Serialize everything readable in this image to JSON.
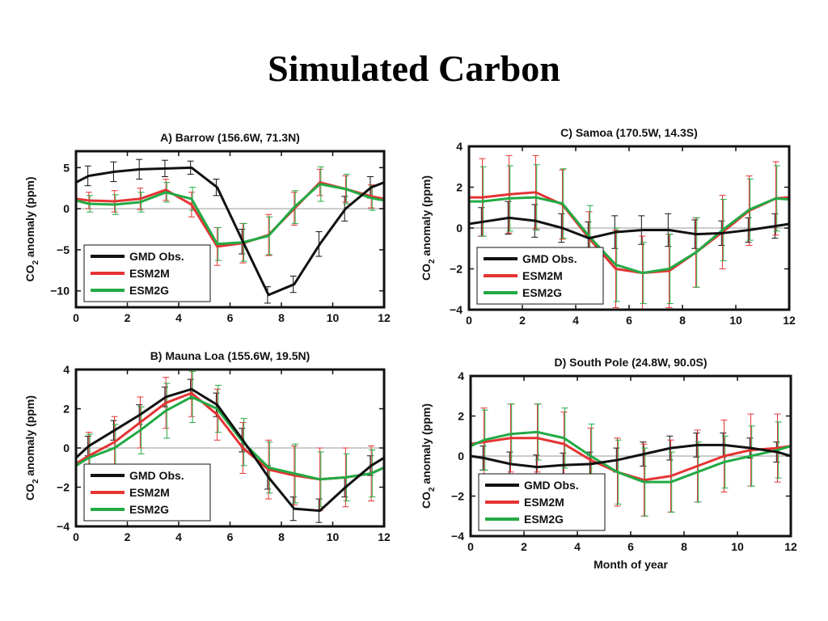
{
  "slide": {
    "title": "Simulated Carbon"
  },
  "colors": {
    "obs": "#111111",
    "esm2m": "#e53333",
    "esm2g": "#22aa44",
    "zero_line": "#999999"
  },
  "chart_data": [
    {
      "type": "line",
      "title": "A) Barrow (156.6W, 71.3N)",
      "ylabel_main": "CO",
      "ylabel_sub": "2",
      "ylabel_rest": " anomaly (ppm)",
      "xlabel": "",
      "xlim": [
        0,
        12
      ],
      "ylim": [
        -12,
        7
      ],
      "xticks": [
        "0",
        "2",
        "4",
        "6",
        "8",
        "10",
        "12"
      ],
      "yticks": [
        "5",
        "0",
        "−5",
        "−10"
      ],
      "ytick_values": [
        5,
        0,
        -5,
        -10
      ],
      "legend": {
        "placement": "bottom-left",
        "entries": [
          "GMD Obs.",
          "ESM2M",
          "ESM2G"
        ]
      },
      "x": [
        0,
        0.5,
        1.5,
        2.5,
        3.5,
        4.5,
        5.5,
        6.5,
        7.5,
        8.5,
        9.5,
        10.5,
        11.5,
        12
      ],
      "series": [
        {
          "name": "GMD Obs.",
          "values": [
            3.2,
            4.0,
            4.5,
            4.8,
            4.9,
            5.0,
            2.6,
            -4.0,
            -10.5,
            -9.2,
            -4.3,
            0.0,
            2.6,
            3.2
          ],
          "err": [
            0,
            1.2,
            1.2,
            1.2,
            1.0,
            0.8,
            1.0,
            1.5,
            1.0,
            1.0,
            1.5,
            1.5,
            1.3,
            0
          ]
        },
        {
          "name": "ESM2M",
          "values": [
            1.2,
            1.0,
            0.9,
            1.2,
            2.3,
            0.5,
            -4.6,
            -4.2,
            -3.2,
            0.0,
            3.2,
            2.4,
            1.5,
            1.2
          ],
          "err": [
            0,
            1.0,
            1.3,
            1.3,
            1.3,
            1.5,
            2.3,
            2.4,
            2.5,
            2.0,
            1.6,
            1.6,
            1.4,
            0
          ]
        },
        {
          "name": "ESM2G",
          "values": [
            1.0,
            0.6,
            0.5,
            0.8,
            2.0,
            1.2,
            -4.3,
            -4.1,
            -3.3,
            0.2,
            3.0,
            2.4,
            1.3,
            1.0
          ],
          "err": [
            0,
            1.0,
            1.2,
            1.2,
            1.2,
            1.4,
            2.0,
            2.3,
            2.3,
            2.0,
            2.1,
            1.8,
            1.5,
            0
          ]
        }
      ]
    },
    {
      "type": "line",
      "title": "B) Mauna Loa (155.6W, 19.5N)",
      "ylabel_main": "CO",
      "ylabel_sub": "2",
      "ylabel_rest": " anomaly (ppm)",
      "xlabel": "",
      "xlim": [
        0,
        12
      ],
      "ylim": [
        -4,
        4
      ],
      "xticks": [
        "0",
        "2",
        "4",
        "6",
        "8",
        "10",
        "12"
      ],
      "yticks": [
        "4",
        "2",
        "0",
        "−2",
        "−4"
      ],
      "ytick_values": [
        4,
        2,
        0,
        -2,
        -4
      ],
      "legend": {
        "placement": "bottom-left",
        "entries": [
          "GMD Obs.",
          "ESM2M",
          "ESM2G"
        ]
      },
      "x": [
        0,
        0.5,
        1.5,
        2.5,
        3.5,
        4.5,
        5.5,
        6.5,
        7.5,
        8.5,
        9.5,
        10.5,
        11.5,
        12
      ],
      "series": [
        {
          "name": "GMD Obs.",
          "values": [
            -0.5,
            0.1,
            0.9,
            1.7,
            2.6,
            3.0,
            2.2,
            0.4,
            -1.5,
            -3.1,
            -3.2,
            -2.0,
            -0.9,
            -0.5
          ],
          "err": [
            0,
            0.5,
            0.5,
            0.5,
            0.5,
            0.5,
            0.6,
            0.6,
            0.6,
            0.6,
            0.6,
            0.5,
            0.5,
            0
          ]
        },
        {
          "name": "ESM2M",
          "values": [
            -0.8,
            -0.4,
            0.3,
            1.3,
            2.3,
            2.8,
            1.7,
            0.0,
            -1.1,
            -1.4,
            -1.6,
            -1.5,
            -1.3,
            -1.0
          ],
          "err": [
            0,
            1.2,
            1.3,
            1.3,
            1.3,
            1.2,
            1.3,
            1.3,
            1.5,
            1.5,
            1.6,
            1.5,
            1.4,
            0
          ]
        },
        {
          "name": "ESM2G",
          "values": [
            -0.9,
            -0.5,
            0.0,
            0.9,
            1.9,
            2.6,
            2.0,
            0.3,
            -1.0,
            -1.3,
            -1.6,
            -1.5,
            -1.3,
            -1.0
          ],
          "err": [
            0,
            1.2,
            1.2,
            1.2,
            1.4,
            1.3,
            1.2,
            1.2,
            1.3,
            1.5,
            1.4,
            1.2,
            1.2,
            0
          ]
        }
      ]
    },
    {
      "type": "line",
      "title": "C) Samoa (170.5W, 14.3S)",
      "ylabel_main": "CO",
      "ylabel_sub": "2",
      "ylabel_rest": " anomaly (ppm)",
      "xlabel": "",
      "xlim": [
        0,
        12
      ],
      "ylim": [
        -4,
        4
      ],
      "xticks": [
        "0",
        "2",
        "4",
        "6",
        "8",
        "10",
        "12"
      ],
      "yticks": [
        "4",
        "2",
        "0",
        "−2",
        "−4"
      ],
      "ytick_values": [
        4,
        2,
        0,
        -2,
        -4
      ],
      "legend": {
        "placement": "bottom-left",
        "entries": [
          "GMD Obs.",
          "ESM2M",
          "ESM2G"
        ]
      },
      "x": [
        0,
        0.5,
        1.5,
        2.5,
        3.5,
        4.5,
        5.5,
        6.5,
        7.5,
        8.5,
        9.5,
        10.5,
        11.5,
        12
      ],
      "series": [
        {
          "name": "GMD Obs.",
          "values": [
            0.2,
            0.3,
            0.5,
            0.35,
            0.0,
            -0.5,
            -0.2,
            -0.1,
            -0.1,
            -0.3,
            -0.25,
            -0.1,
            0.1,
            0.2
          ],
          "err": [
            0,
            0.7,
            0.8,
            0.8,
            0.7,
            0.8,
            0.8,
            0.7,
            0.8,
            0.7,
            0.6,
            0.6,
            0.6,
            0
          ]
        },
        {
          "name": "ESM2M",
          "values": [
            1.5,
            1.5,
            1.65,
            1.75,
            1.15,
            -0.5,
            -2.0,
            -2.2,
            -2.1,
            -1.2,
            -0.2,
            0.85,
            1.45,
            1.5
          ],
          "err": [
            0,
            1.9,
            1.9,
            1.8,
            1.7,
            1.3,
            1.9,
            1.8,
            1.8,
            1.7,
            1.8,
            1.7,
            1.8,
            0
          ]
        },
        {
          "name": "ESM2G",
          "values": [
            1.3,
            1.3,
            1.45,
            1.5,
            1.2,
            -0.4,
            -1.8,
            -2.2,
            -2.0,
            -1.2,
            -0.1,
            0.9,
            1.45,
            1.4
          ],
          "err": [
            0,
            1.7,
            1.6,
            1.6,
            1.7,
            1.5,
            1.8,
            1.5,
            1.7,
            1.7,
            1.5,
            1.5,
            1.6,
            0
          ]
        }
      ]
    },
    {
      "type": "line",
      "title": "D) South Pole (24.8W, 90.0S)",
      "ylabel_main": "CO",
      "ylabel_sub": "2",
      "ylabel_rest": " anomaly (ppm)",
      "xlabel": "Month of year",
      "xlim": [
        0,
        12
      ],
      "ylim": [
        -4,
        4
      ],
      "xticks": [
        "0",
        "2",
        "4",
        "6",
        "8",
        "10",
        "12"
      ],
      "yticks": [
        "4",
        "2",
        "0",
        "−2",
        "−4"
      ],
      "ytick_values": [
        4,
        2,
        0,
        -2,
        -4
      ],
      "legend": {
        "placement": "bottom-left",
        "entries": [
          "GMD Obs.",
          "ESM2M",
          "ESM2G"
        ]
      },
      "x": [
        0,
        0.5,
        1.5,
        2.5,
        3.5,
        4.5,
        5.5,
        6.5,
        7.5,
        8.5,
        9.5,
        10.5,
        11.5,
        12
      ],
      "series": [
        {
          "name": "GMD Obs.",
          "values": [
            0.0,
            -0.1,
            -0.4,
            -0.55,
            -0.45,
            -0.4,
            -0.2,
            0.1,
            0.4,
            0.55,
            0.55,
            0.4,
            0.2,
            0.0
          ],
          "err": [
            0,
            0.6,
            0.6,
            0.6,
            0.6,
            0.6,
            0.6,
            0.6,
            0.6,
            0.6,
            0.6,
            0.5,
            0.5,
            0
          ]
        },
        {
          "name": "ESM2M",
          "values": [
            0.6,
            0.7,
            0.9,
            0.9,
            0.6,
            -0.2,
            -0.8,
            -1.2,
            -1.0,
            -0.5,
            0.0,
            0.3,
            0.4,
            0.5
          ],
          "err": [
            0,
            1.7,
            1.7,
            1.7,
            1.6,
            1.6,
            1.7,
            1.8,
            1.8,
            1.8,
            1.8,
            1.8,
            1.7,
            0
          ]
        },
        {
          "name": "ESM2G",
          "values": [
            0.5,
            0.8,
            1.1,
            1.2,
            0.9,
            0.0,
            -0.8,
            -1.3,
            -1.3,
            -0.8,
            -0.3,
            0.0,
            0.3,
            0.5
          ],
          "err": [
            0,
            1.5,
            1.5,
            1.4,
            1.5,
            1.6,
            1.6,
            1.7,
            1.5,
            1.5,
            1.3,
            1.5,
            1.4,
            0
          ]
        }
      ]
    }
  ]
}
